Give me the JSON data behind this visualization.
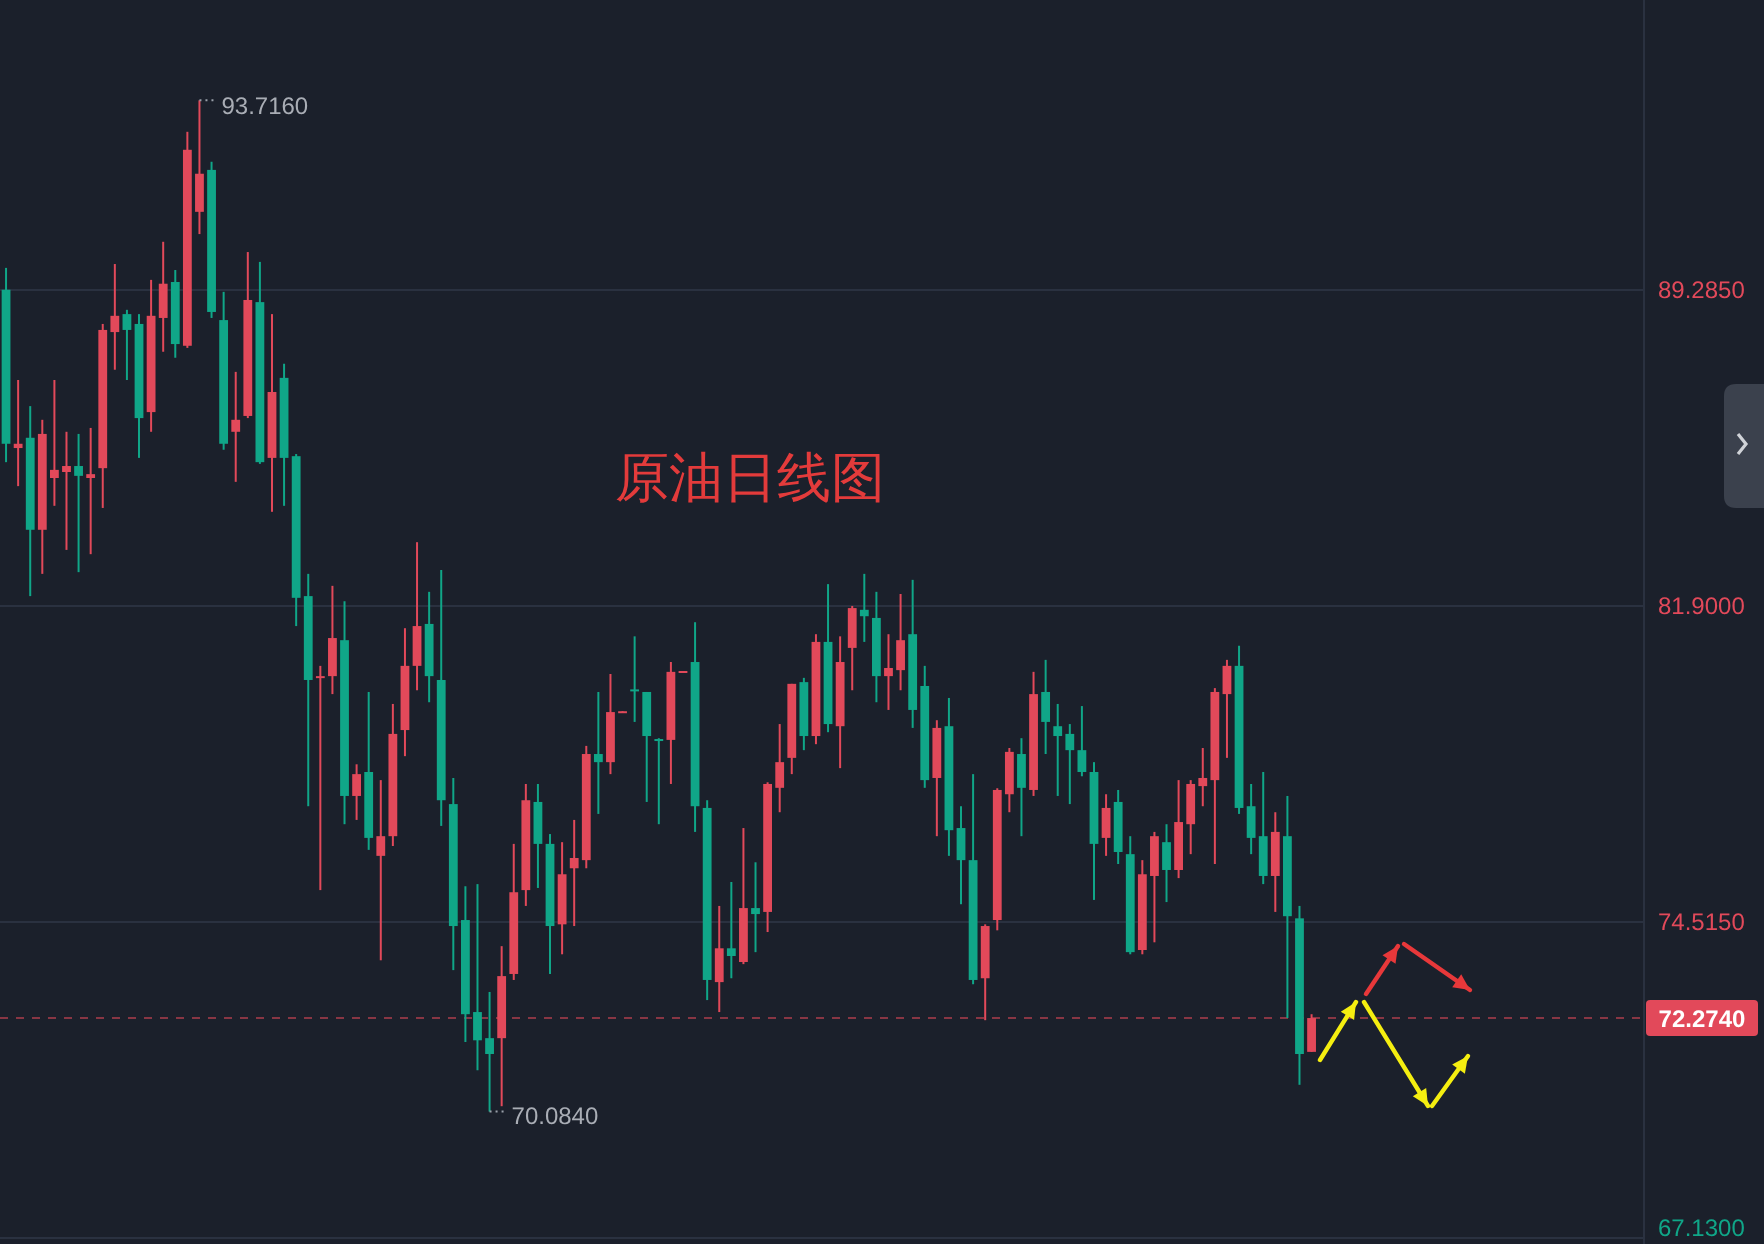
{
  "chart_data": {
    "type": "candlestick",
    "title": "原油日线图",
    "categories": [
      null,
      null,
      null,
      null,
      null,
      null,
      null,
      null,
      null,
      null,
      null,
      null,
      null,
      null,
      null,
      null,
      null,
      null,
      null,
      null,
      null,
      null,
      null,
      null,
      null,
      null,
      null,
      null,
      null,
      null,
      null,
      null,
      null,
      null,
      null,
      null,
      null,
      null,
      null,
      null,
      null,
      null,
      null,
      null,
      null,
      null,
      null,
      null,
      null,
      null,
      null,
      null,
      null,
      null,
      null,
      null,
      null,
      null,
      null,
      null,
      null,
      null,
      null,
      null,
      null,
      null,
      null,
      null,
      null,
      null,
      null,
      null,
      null,
      null,
      null,
      null,
      null,
      null,
      null,
      null,
      null,
      null,
      null,
      null,
      null,
      null,
      null,
      null,
      null,
      null,
      null,
      null,
      null,
      null,
      null,
      null,
      null,
      null,
      null,
      null,
      null,
      null,
      null,
      null,
      null,
      null,
      null,
      null,
      null,
      null,
      null,
      null,
      null,
      null,
      null,
      null,
      null,
      null,
      null,
      null,
      null,
      null,
      null,
      null,
      null,
      null,
      null,
      null,
      null,
      null,
      null,
      null,
      null,
      null,
      null,
      null
    ],
    "ohlc": [
      [
        89.29,
        89.8,
        85.26,
        85.69
      ],
      [
        85.59,
        87.18,
        84.7,
        85.69
      ],
      [
        85.83,
        86.57,
        82.13,
        83.68
      ],
      [
        83.68,
        86.25,
        82.65,
        85.92
      ],
      [
        84.89,
        87.18,
        84.24,
        85.08
      ],
      [
        85.03,
        85.97,
        83.21,
        85.17
      ],
      [
        85.17,
        85.92,
        82.69,
        84.94
      ],
      [
        84.89,
        86.06,
        83.11,
        84.98
      ],
      [
        85.12,
        88.49,
        84.19,
        88.35
      ],
      [
        88.3,
        89.89,
        87.42,
        88.68
      ],
      [
        88.72,
        88.82,
        87.18,
        88.35
      ],
      [
        88.49,
        88.72,
        85.36,
        86.29
      ],
      [
        86.43,
        89.52,
        85.97,
        88.68
      ],
      [
        88.63,
        90.41,
        87.84,
        89.43
      ],
      [
        89.47,
        89.75,
        87.7,
        88.02
      ],
      [
        87.98,
        92.98,
        87.93,
        92.56
      ],
      [
        91.11,
        93.716,
        90.59,
        92.0
      ],
      [
        92.09,
        92.28,
        88.63,
        88.77
      ],
      [
        88.58,
        89.24,
        85.55,
        85.69
      ],
      [
        85.97,
        87.37,
        84.8,
        86.25
      ],
      [
        86.34,
        90.17,
        86.29,
        89.05
      ],
      [
        89.0,
        89.94,
        85.22,
        85.26
      ],
      [
        85.36,
        88.72,
        84.1,
        86.9
      ],
      [
        87.23,
        87.56,
        84.24,
        85.36
      ],
      [
        85.4,
        85.45,
        81.43,
        82.09
      ],
      [
        82.13,
        82.65,
        77.22,
        80.17
      ],
      [
        80.22,
        80.5,
        75.26,
        80.26
      ],
      [
        80.26,
        82.37,
        79.84,
        81.15
      ],
      [
        81.1,
        82.01,
        76.8,
        77.46
      ],
      [
        77.46,
        78.2,
        76.9,
        77.97
      ],
      [
        78.02,
        79.89,
        76.2,
        76.48
      ],
      [
        76.06,
        77.83,
        73.62,
        76.52
      ],
      [
        76.52,
        79.61,
        76.29,
        78.91
      ],
      [
        79.0,
        81.38,
        78.39,
        80.5
      ],
      [
        80.5,
        83.39,
        79.93,
        81.43
      ],
      [
        81.48,
        82.23,
        79.65,
        80.26
      ],
      [
        80.17,
        82.74,
        76.76,
        77.36
      ],
      [
        77.27,
        77.88,
        73.39,
        74.42
      ],
      [
        74.56,
        75.35,
        71.71,
        72.36
      ],
      [
        72.41,
        75.4,
        71.05,
        71.75
      ],
      [
        71.8,
        72.88,
        70.084,
        71.43
      ],
      [
        71.8,
        73.95,
        70.21,
        73.25
      ],
      [
        73.3,
        76.34,
        73.16,
        75.21
      ],
      [
        75.26,
        77.74,
        74.89,
        77.36
      ],
      [
        77.32,
        77.74,
        75.31,
        76.34
      ],
      [
        76.34,
        76.57,
        73.3,
        74.42
      ],
      [
        74.46,
        76.38,
        73.76,
        75.63
      ],
      [
        75.77,
        76.9,
        74.42,
        76.01
      ],
      [
        75.96,
        78.63,
        75.77,
        78.44
      ],
      [
        78.44,
        79.89,
        77.04,
        78.25
      ],
      [
        78.25,
        80.31,
        77.97,
        79.42
      ],
      [
        79.4,
        79.44,
        79.4,
        79.44
      ],
      [
        79.95,
        81.19,
        79.19,
        79.91
      ],
      [
        79.89,
        79.89,
        77.32,
        78.86
      ],
      [
        78.79,
        78.81,
        76.8,
        78.75
      ],
      [
        78.77,
        80.59,
        77.74,
        80.36
      ],
      [
        80.34,
        80.38,
        80.34,
        80.38
      ],
      [
        80.59,
        81.52,
        76.62,
        77.22
      ],
      [
        77.18,
        77.36,
        72.69,
        73.16
      ],
      [
        73.11,
        74.89,
        72.41,
        73.9
      ],
      [
        73.9,
        75.45,
        73.2,
        73.72
      ],
      [
        73.58,
        76.71,
        73.53,
        74.84
      ],
      [
        74.84,
        75.91,
        73.81,
        74.7
      ],
      [
        74.75,
        77.78,
        74.28,
        77.74
      ],
      [
        77.65,
        79.14,
        77.08,
        78.25
      ],
      [
        78.35,
        80.08,
        77.97,
        80.08
      ],
      [
        80.12,
        80.22,
        78.53,
        78.86
      ],
      [
        78.86,
        81.24,
        78.67,
        81.06
      ],
      [
        81.06,
        82.41,
        78.95,
        79.14
      ],
      [
        79.09,
        81.19,
        78.11,
        80.59
      ],
      [
        80.92,
        81.9,
        79.93,
        81.85
      ],
      [
        81.81,
        82.65,
        81.06,
        81.66
      ],
      [
        81.62,
        82.23,
        79.65,
        80.26
      ],
      [
        80.26,
        81.24,
        79.47,
        80.45
      ],
      [
        80.4,
        82.18,
        79.93,
        81.1
      ],
      [
        81.24,
        82.51,
        79.05,
        79.47
      ],
      [
        80.03,
        80.5,
        77.65,
        77.83
      ],
      [
        77.88,
        79.23,
        76.52,
        79.05
      ],
      [
        79.09,
        79.75,
        76.06,
        76.66
      ],
      [
        76.71,
        77.22,
        74.93,
        75.96
      ],
      [
        75.96,
        77.97,
        73.06,
        73.16
      ],
      [
        73.2,
        74.46,
        72.22,
        74.42
      ],
      [
        74.56,
        77.64,
        74.32,
        77.6
      ],
      [
        77.5,
        78.58,
        77.08,
        78.49
      ],
      [
        78.44,
        78.81,
        76.52,
        77.65
      ],
      [
        77.6,
        80.36,
        77.46,
        79.84
      ],
      [
        79.89,
        80.64,
        78.44,
        79.19
      ],
      [
        79.09,
        79.61,
        77.46,
        78.86
      ],
      [
        78.91,
        79.14,
        77.27,
        78.53
      ],
      [
        78.53,
        79.56,
        77.92,
        78.02
      ],
      [
        78.02,
        78.25,
        75.03,
        76.34
      ],
      [
        76.48,
        77.5,
        76.06,
        77.18
      ],
      [
        77.32,
        77.6,
        75.87,
        76.15
      ],
      [
        76.1,
        76.52,
        73.76,
        73.81
      ],
      [
        73.86,
        75.96,
        73.76,
        75.63
      ],
      [
        75.59,
        76.62,
        74.04,
        76.52
      ],
      [
        76.38,
        76.8,
        74.98,
        75.73
      ],
      [
        75.73,
        77.83,
        75.54,
        76.85
      ],
      [
        76.8,
        77.83,
        76.1,
        77.74
      ],
      [
        77.69,
        78.58,
        77.22,
        77.88
      ],
      [
        77.83,
        79.98,
        75.87,
        79.89
      ],
      [
        79.84,
        80.64,
        78.35,
        80.5
      ],
      [
        80.5,
        80.97,
        77.04,
        77.18
      ],
      [
        77.22,
        77.74,
        76.1,
        76.48
      ],
      [
        76.52,
        78.02,
        75.4,
        75.59
      ],
      [
        75.59,
        77.08,
        74.75,
        76.62
      ],
      [
        76.52,
        77.46,
        72.27,
        74.65
      ],
      [
        74.6,
        74.89,
        70.71,
        71.43
      ],
      [
        71.48,
        72.36,
        71.48,
        72.27
      ],
      null,
      null,
      null,
      null,
      null,
      null,
      null,
      null,
      null,
      null,
      null,
      null,
      null,
      null,
      null,
      null,
      null,
      null,
      null,
      null,
      null,
      null,
      null,
      null,
      null,
      null,
      null
    ],
    "colors": [
      "#10a688",
      "#e2495a",
      "#10a688",
      "#e2495a",
      "#e2495a",
      "#e2495a",
      "#10a688",
      "#e2495a",
      "#e2495a",
      "#e2495a",
      "#10a688",
      "#10a688",
      "#e2495a",
      "#e2495a",
      "#10a688",
      "#e2495a",
      "#e2495a",
      "#10a688",
      "#10a688",
      "#e2495a",
      "#e2495a",
      "#10a688",
      "#e2495a",
      "#10a688",
      "#10a688",
      "#10a688",
      "#e2495a",
      "#e2495a",
      "#10a688",
      "#e2495a",
      "#10a688",
      "#e2495a",
      "#e2495a",
      "#e2495a",
      "#e2495a",
      "#10a688",
      "#10a688",
      "#10a688",
      "#10a688",
      "#10a688",
      "#10a688",
      "#e2495a",
      "#e2495a",
      "#e2495a",
      "#10a688",
      "#10a688",
      "#e2495a",
      "#e2495a",
      "#e2495a",
      "#10a688",
      "#e2495a",
      "#e2495a",
      "#10a688",
      "#10a688",
      "#10a688",
      "#e2495a",
      "#e2495a",
      "#10a688",
      "#10a688",
      "#e2495a",
      "#10a688",
      "#e2495a",
      "#10a688",
      "#e2495a",
      "#e2495a",
      "#e2495a",
      "#10a688",
      "#e2495a",
      "#10a688",
      "#e2495a",
      "#e2495a",
      "#10a688",
      "#10a688",
      "#e2495a",
      "#e2495a",
      "#10a688",
      "#10a688",
      "#e2495a",
      "#10a688",
      "#10a688",
      "#10a688",
      "#e2495a",
      "#e2495a",
      "#e2495a",
      "#10a688",
      "#e2495a",
      "#10a688",
      "#10a688",
      "#10a688",
      "#10a688",
      "#10a688",
      "#e2495a",
      "#10a688",
      "#10a688",
      "#e2495a",
      "#e2495a",
      "#10a688",
      "#e2495a",
      "#e2495a",
      "#e2495a",
      "#e2495a",
      "#e2495a",
      "#10a688",
      "#10a688",
      "#10a688",
      "#e2495a",
      "#10a688",
      "#10a688",
      "#e2495a",
      null,
      null,
      null,
      null,
      null,
      null,
      null,
      null,
      null,
      null,
      null,
      null,
      null,
      null,
      null,
      null,
      null,
      null,
      null,
      null,
      null,
      null,
      null,
      null,
      null,
      null,
      null
    ],
    "ylim": [
      66.99,
      96.06
    ],
    "yticks": [
      {
        "value": 89.285,
        "label": "89.2850"
      },
      {
        "value": 81.9,
        "label": "81.9000"
      },
      {
        "value": 74.515,
        "label": "74.5150"
      },
      {
        "value": 67.13,
        "label": "67.1300"
      }
    ],
    "grid": "y",
    "tick_labels": "y",
    "ref_lines": [
      {
        "axis": "y",
        "value": 72.274,
        "label": "72.2740",
        "color": "#e2495a",
        "line_style": "dashed"
      }
    ],
    "annotations": [
      "93.7160",
      "70.0840"
    ]
  }
}
